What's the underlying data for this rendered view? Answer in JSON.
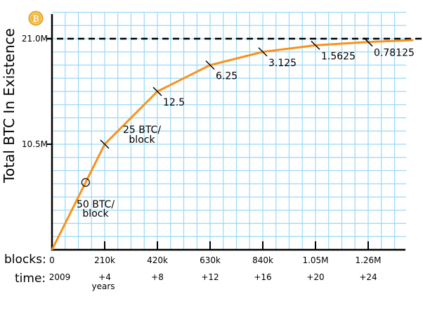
{
  "chart_data": {
    "type": "line",
    "ylabel": "Total BTC In Existence",
    "y_ticks": [
      {
        "value": 10.5,
        "label": "10.5M"
      },
      {
        "value": 21.0,
        "label": "21.0M"
      }
    ],
    "ylim": [
      0,
      21.0
    ],
    "y_unit": "million BTC",
    "x_row_label": "blocks:",
    "x_ticks": [
      {
        "value": 0,
        "label": "0"
      },
      {
        "value": 210000,
        "label": "210k"
      },
      {
        "value": 420000,
        "label": "420k"
      },
      {
        "value": 630000,
        "label": "630k"
      },
      {
        "value": 840000,
        "label": "840k"
      },
      {
        "value": 1050000,
        "label": "1.05M"
      },
      {
        "value": 1260000,
        "label": "1.26M"
      }
    ],
    "time_row_label": "time:",
    "time_ticks": [
      "2009",
      "+4",
      "+8",
      "+12",
      "+16",
      "+20",
      "+24"
    ],
    "time_unit_label": "years",
    "xlim": [
      0,
      1400000
    ],
    "grid": true,
    "limit_line": {
      "value": 21.0,
      "style": "dashed"
    },
    "series": [
      {
        "color": "#f7931a",
        "x": [
          0,
          210000,
          420000,
          630000,
          840000,
          1050000,
          1260000,
          1440000
        ],
        "y": [
          0,
          10.5,
          15.75,
          18.375,
          19.6875,
          20.34375,
          20.671875,
          20.86
        ]
      }
    ],
    "marker_circle": {
      "x": 134000,
      "y": 6.7
    },
    "reward_labels": [
      {
        "x": 210000,
        "y": 10.5,
        "line1": "25 BTC/",
        "line2": "block"
      },
      {
        "x": 420000,
        "y": 15.75,
        "line1": "12.5"
      },
      {
        "x": 630000,
        "y": 18.375,
        "line1": "6.25"
      },
      {
        "x": 840000,
        "y": 19.6875,
        "line1": "3.125"
      },
      {
        "x": 1050000,
        "y": 20.34375,
        "line1": "1.5625"
      },
      {
        "x": 1260000,
        "y": 20.671875,
        "line1": "0.78125"
      }
    ],
    "first_label": {
      "line1": "50 BTC/",
      "line2": "block"
    },
    "colors": {
      "grid": "#99d9f7",
      "curve": "#f7931a",
      "axis": "#000000",
      "logo": "#f2b338"
    },
    "logo_icon": "bitcoin-coin-icon"
  }
}
